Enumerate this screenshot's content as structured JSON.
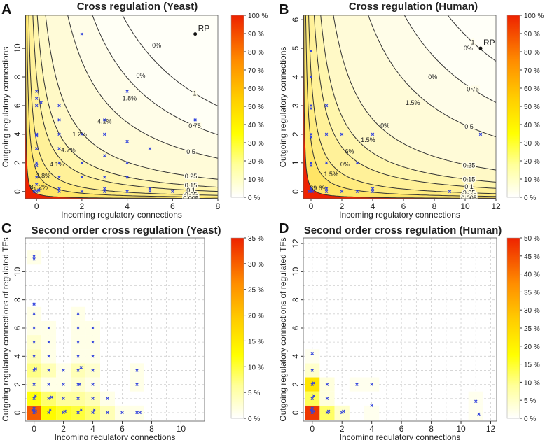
{
  "panels": [
    {
      "letter": "A",
      "title": "Cross regulation (Yeast)",
      "xlabel": "Incoming regulatory connections",
      "ylabel": "Outgoing regulatory connections",
      "xlim": [
        -0.5,
        8
      ],
      "ylim": [
        -0.5,
        12.3
      ],
      "xticks": [
        "0",
        "2",
        "4",
        "6",
        "8"
      ],
      "xtick_vals": [
        0,
        2,
        4,
        6,
        8
      ],
      "yticks": [
        "0",
        "2",
        "4",
        "6",
        "8",
        "10"
      ],
      "ytick_vals": [
        0,
        2,
        4,
        6,
        8,
        10
      ],
      "colorbar": {
        "ticks": [
          "100 %",
          "90 %",
          "80 %",
          "70 %",
          "60 %",
          "50 %",
          "40 %",
          "30 %",
          "20 %",
          "10 %",
          "0 %"
        ]
      },
      "contour_labels": [
        "1",
        "0.75",
        "0.5",
        "0.25",
        "0.15",
        "0.1",
        "0.05",
        "0.025",
        "0.005"
      ],
      "contour_levels": [
        1,
        0.75,
        0.5,
        0.25,
        0.15,
        0.1,
        0.05,
        0.025,
        0.005
      ],
      "contour_k": [
        55,
        38,
        24,
        11.5,
        6.8,
        4.3,
        2.0,
        0.95,
        0.18
      ],
      "region_percents": [
        {
          "text": "0%",
          "x": 5.3,
          "y": 10.2
        },
        {
          "text": "0%",
          "x": 4.6,
          "y": 8.1
        },
        {
          "text": "1.8%",
          "x": 4.1,
          "y": 6.5
        },
        {
          "text": "4.1%",
          "x": 3.0,
          "y": 4.9
        },
        {
          "text": "1.2%",
          "x": 1.9,
          "y": 4.0
        },
        {
          "text": "4.7%",
          "x": 1.4,
          "y": 2.9
        },
        {
          "text": "4.1%",
          "x": 0.9,
          "y": 1.9
        },
        {
          "text": "1.8%",
          "x": 0.3,
          "y": 1.1
        },
        {
          "text": "82.2%",
          "x": 0.1,
          "y": 0.3
        }
      ],
      "rp_label": "RP",
      "rp": [
        7,
        11
      ],
      "points": [
        [
          0,
          7
        ],
        [
          0,
          6.5
        ],
        [
          0,
          6
        ],
        [
          0,
          4
        ],
        [
          0,
          3.9
        ],
        [
          0,
          3
        ],
        [
          0,
          2
        ],
        [
          0,
          1.8
        ],
        [
          0,
          1
        ],
        [
          0,
          0.5
        ],
        [
          0,
          0
        ],
        [
          0.1,
          0.1
        ],
        [
          -0.1,
          0
        ],
        [
          0.2,
          6.2
        ],
        [
          1,
          6
        ],
        [
          1,
          5
        ],
        [
          1,
          4
        ],
        [
          1,
          3
        ],
        [
          1,
          2
        ],
        [
          1,
          1
        ],
        [
          1,
          0.2
        ],
        [
          1,
          0
        ],
        [
          2,
          11
        ],
        [
          2,
          4
        ],
        [
          2,
          2
        ],
        [
          2,
          1
        ],
        [
          2,
          0
        ],
        [
          3,
          5
        ],
        [
          3,
          4
        ],
        [
          3,
          2.5
        ],
        [
          3,
          1
        ],
        [
          3,
          0
        ],
        [
          3,
          0.2
        ],
        [
          4,
          7
        ],
        [
          4,
          3.5
        ],
        [
          4,
          2
        ],
        [
          4,
          1
        ],
        [
          4,
          0
        ],
        [
          5,
          3
        ],
        [
          5,
          0
        ],
        [
          5,
          0.2
        ],
        [
          6,
          0
        ],
        [
          7,
          5
        ]
      ]
    },
    {
      "letter": "B",
      "title": "Cross regulation (Human)",
      "xlabel": "Incoming regulatory connections",
      "ylabel": "Outgoing regulatory connections",
      "xlim": [
        -0.5,
        12
      ],
      "ylim": [
        -0.25,
        6.15
      ],
      "xticks": [
        "0",
        "2",
        "4",
        "6",
        "8",
        "10",
        "12"
      ],
      "xtick_vals": [
        0,
        2,
        4,
        6,
        8,
        10,
        12
      ],
      "yticks": [
        "0",
        "1",
        "2",
        "3",
        "4",
        "5",
        "6"
      ],
      "ytick_vals": [
        0,
        1,
        2,
        3,
        4,
        5,
        6
      ],
      "colorbar": {
        "ticks": [
          "100 %",
          "90 %",
          "80 %",
          "70 %",
          "60 %",
          "50 %",
          "40 %",
          "30 %",
          "20 %",
          "10 %",
          "0 %"
        ]
      },
      "contour_labels": [
        "1",
        "0.75",
        "0.5",
        "0.25",
        "0.15",
        "0.1",
        "0.05",
        "0.025",
        "0.005"
      ],
      "contour_levels": [
        1,
        0.75,
        0.5,
        0.25,
        0.15,
        0.1,
        0.05,
        0.025,
        0.005
      ],
      "contour_k": [
        60,
        42,
        27,
        12.5,
        7.2,
        4.5,
        2.2,
        1.0,
        0.2
      ],
      "region_percents": [
        {
          "text": "0%",
          "x": 10.2,
          "y": 5.0
        },
        {
          "text": "0%",
          "x": 7.9,
          "y": 4.0
        },
        {
          "text": "1.5%",
          "x": 6.6,
          "y": 3.1
        },
        {
          "text": "0%",
          "x": 4.8,
          "y": 2.3
        },
        {
          "text": "1.5%",
          "x": 3.7,
          "y": 1.8
        },
        {
          "text": "6%",
          "x": 2.5,
          "y": 1.4
        },
        {
          "text": "0%",
          "x": 2.2,
          "y": 0.95
        },
        {
          "text": "1.5%",
          "x": 1.3,
          "y": 0.6
        },
        {
          "text": "89.6%",
          "x": 0.5,
          "y": 0.12
        }
      ],
      "rp_label": "RP",
      "rp": [
        11,
        5
      ],
      "points": [
        [
          0,
          4.9
        ],
        [
          0,
          4
        ],
        [
          0,
          3
        ],
        [
          0,
          2.9
        ],
        [
          0,
          2
        ],
        [
          0,
          1.9
        ],
        [
          0,
          1
        ],
        [
          0,
          0.9
        ],
        [
          0,
          0
        ],
        [
          0,
          0.1
        ],
        [
          0.1,
          0
        ],
        [
          -0.1,
          0
        ],
        [
          1,
          3
        ],
        [
          1,
          2
        ],
        [
          1,
          1
        ],
        [
          1,
          0
        ],
        [
          1,
          0.1
        ],
        [
          2,
          2
        ],
        [
          2,
          0
        ],
        [
          3,
          1
        ],
        [
          3,
          0
        ],
        [
          4,
          2
        ],
        [
          4,
          0
        ],
        [
          4,
          0.1
        ],
        [
          9,
          0
        ],
        [
          11,
          2
        ]
      ]
    },
    {
      "letter": "C",
      "title": "Second order cross regulation (Yeast)",
      "xlabel": "Incoming regulatory connections",
      "ylabel": "Outgoing regulatory connections of regulated TFs",
      "xlim": [
        -0.6,
        11.6
      ],
      "ylim": [
        -0.6,
        12.4
      ],
      "xticks": [
        "0",
        "2",
        "4",
        "6",
        "8",
        "10"
      ],
      "xtick_vals": [
        0,
        2,
        4,
        6,
        8,
        10
      ],
      "yticks": [
        "0",
        "2",
        "4",
        "6",
        "8",
        "10"
      ],
      "ytick_vals": [
        0,
        2,
        4,
        6,
        8,
        10
      ],
      "colorbar": {
        "ticks": [
          "35 %",
          "30 %",
          "25 %",
          "20 %",
          "15 %",
          "10 %",
          "5 %",
          "0 %"
        ],
        "max": 35
      },
      "cells": [
        [
          0,
          0,
          30
        ],
        [
          1,
          0,
          11
        ],
        [
          2,
          0,
          9
        ],
        [
          3,
          0,
          8
        ],
        [
          4,
          0,
          6
        ],
        [
          5,
          0,
          3
        ],
        [
          6,
          0,
          1
        ],
        [
          7,
          0,
          1
        ],
        [
          0,
          1,
          10
        ],
        [
          1,
          1,
          6
        ],
        [
          2,
          1,
          4
        ],
        [
          3,
          1,
          4
        ],
        [
          4,
          1,
          3
        ],
        [
          5,
          1,
          1
        ],
        [
          0,
          2,
          3
        ],
        [
          1,
          2,
          1
        ],
        [
          2,
          2,
          1
        ],
        [
          3,
          2,
          2
        ],
        [
          4,
          2,
          1
        ],
        [
          7,
          2,
          1
        ],
        [
          0,
          3,
          5
        ],
        [
          1,
          3,
          3
        ],
        [
          2,
          3,
          1
        ],
        [
          3,
          3,
          3
        ],
        [
          4,
          3,
          2
        ],
        [
          7,
          3,
          1
        ],
        [
          0,
          4,
          3
        ],
        [
          1,
          4,
          1
        ],
        [
          3,
          4,
          1
        ],
        [
          4,
          4,
          1
        ],
        [
          0,
          5,
          2
        ],
        [
          1,
          5,
          1
        ],
        [
          3,
          5,
          1
        ],
        [
          4,
          5,
          1
        ],
        [
          0,
          6,
          1
        ],
        [
          1,
          6,
          1
        ],
        [
          3,
          6,
          1
        ],
        [
          4,
          6,
          1
        ],
        [
          0,
          7,
          1
        ],
        [
          3,
          7,
          1
        ],
        [
          0,
          11,
          1
        ]
      ],
      "points": [
        [
          0,
          0
        ],
        [
          0.1,
          0.1
        ],
        [
          -0.1,
          0.2
        ],
        [
          0,
          0.3
        ],
        [
          1,
          0
        ],
        [
          1.1,
          0.2
        ],
        [
          2,
          0
        ],
        [
          2.1,
          0.1
        ],
        [
          3,
          0
        ],
        [
          3.2,
          0.2
        ],
        [
          4,
          0
        ],
        [
          4.1,
          0.2
        ],
        [
          5,
          0
        ],
        [
          6,
          0
        ],
        [
          7,
          0
        ],
        [
          7.2,
          0
        ],
        [
          0,
          1
        ],
        [
          0.1,
          1.2
        ],
        [
          1,
          1
        ],
        [
          1.2,
          1.1
        ],
        [
          2,
          1
        ],
        [
          3,
          1
        ],
        [
          4,
          1
        ],
        [
          5,
          1
        ],
        [
          0,
          2
        ],
        [
          1,
          2
        ],
        [
          2,
          2
        ],
        [
          3,
          2
        ],
        [
          3.1,
          2
        ],
        [
          4,
          2
        ],
        [
          7,
          2
        ],
        [
          0,
          3
        ],
        [
          0.1,
          3.1
        ],
        [
          1,
          3
        ],
        [
          2,
          3
        ],
        [
          3,
          3
        ],
        [
          3.2,
          3.2
        ],
        [
          4,
          3
        ],
        [
          7,
          3
        ],
        [
          0,
          4
        ],
        [
          1,
          4
        ],
        [
          3,
          4
        ],
        [
          4,
          4
        ],
        [
          0,
          5
        ],
        [
          1,
          5
        ],
        [
          3,
          5
        ],
        [
          4,
          5
        ],
        [
          0,
          6
        ],
        [
          1,
          6
        ],
        [
          3,
          6
        ],
        [
          4,
          6
        ],
        [
          0,
          7
        ],
        [
          3,
          7
        ],
        [
          0,
          7.7
        ],
        [
          0,
          10.9
        ],
        [
          0,
          11.1
        ]
      ]
    },
    {
      "letter": "D",
      "title": "Second order cross regulation (Human)",
      "xlabel": "Incoming regulatory connections",
      "ylabel": "Outgoing regulatory connections of regulated TFs",
      "xlim": [
        -0.6,
        12.4
      ],
      "ylim": [
        -0.6,
        12.4
      ],
      "xticks": [
        "0",
        "2",
        "4",
        "6",
        "8",
        "10",
        "12"
      ],
      "xtick_vals": [
        0,
        2,
        4,
        6,
        8,
        10,
        12
      ],
      "yticks": [
        "0",
        "2",
        "4",
        "6",
        "8",
        "10",
        "12"
      ],
      "ytick_vals": [
        0,
        2,
        4,
        6,
        8,
        10,
        12
      ],
      "colorbar": {
        "ticks": [
          "50 %",
          "45 %",
          "40 %",
          "35 %",
          "30 %",
          "25 %",
          "20 %",
          "15 %",
          "10 %",
          "5 %",
          "0 %"
        ],
        "max": 50
      },
      "cells": [
        [
          0,
          0,
          48
        ],
        [
          1,
          0,
          9
        ],
        [
          2,
          0,
          3
        ],
        [
          4,
          0,
          1
        ],
        [
          11,
          0,
          1
        ],
        [
          0,
          1,
          10
        ],
        [
          1,
          1,
          2
        ],
        [
          11,
          1,
          1
        ],
        [
          0,
          2,
          20
        ],
        [
          1,
          2,
          2
        ],
        [
          3,
          2,
          1
        ],
        [
          4,
          2,
          1
        ],
        [
          0,
          3,
          3
        ],
        [
          0,
          4,
          1
        ]
      ],
      "points": [
        [
          0,
          0
        ],
        [
          0.1,
          0.1
        ],
        [
          -0.1,
          0.2
        ],
        [
          0,
          0.3
        ],
        [
          1,
          0
        ],
        [
          1.1,
          0.1
        ],
        [
          2,
          0
        ],
        [
          2.1,
          0.1
        ],
        [
          4,
          0.5
        ],
        [
          11,
          0.8
        ],
        [
          11.2,
          -0.1
        ],
        [
          0,
          1
        ],
        [
          0.1,
          1.2
        ],
        [
          1,
          1
        ],
        [
          0,
          2
        ],
        [
          0.1,
          2.1
        ],
        [
          1,
          2
        ],
        [
          3,
          2
        ],
        [
          4,
          2
        ],
        [
          0,
          3
        ],
        [
          0,
          4.2
        ]
      ]
    }
  ]
}
